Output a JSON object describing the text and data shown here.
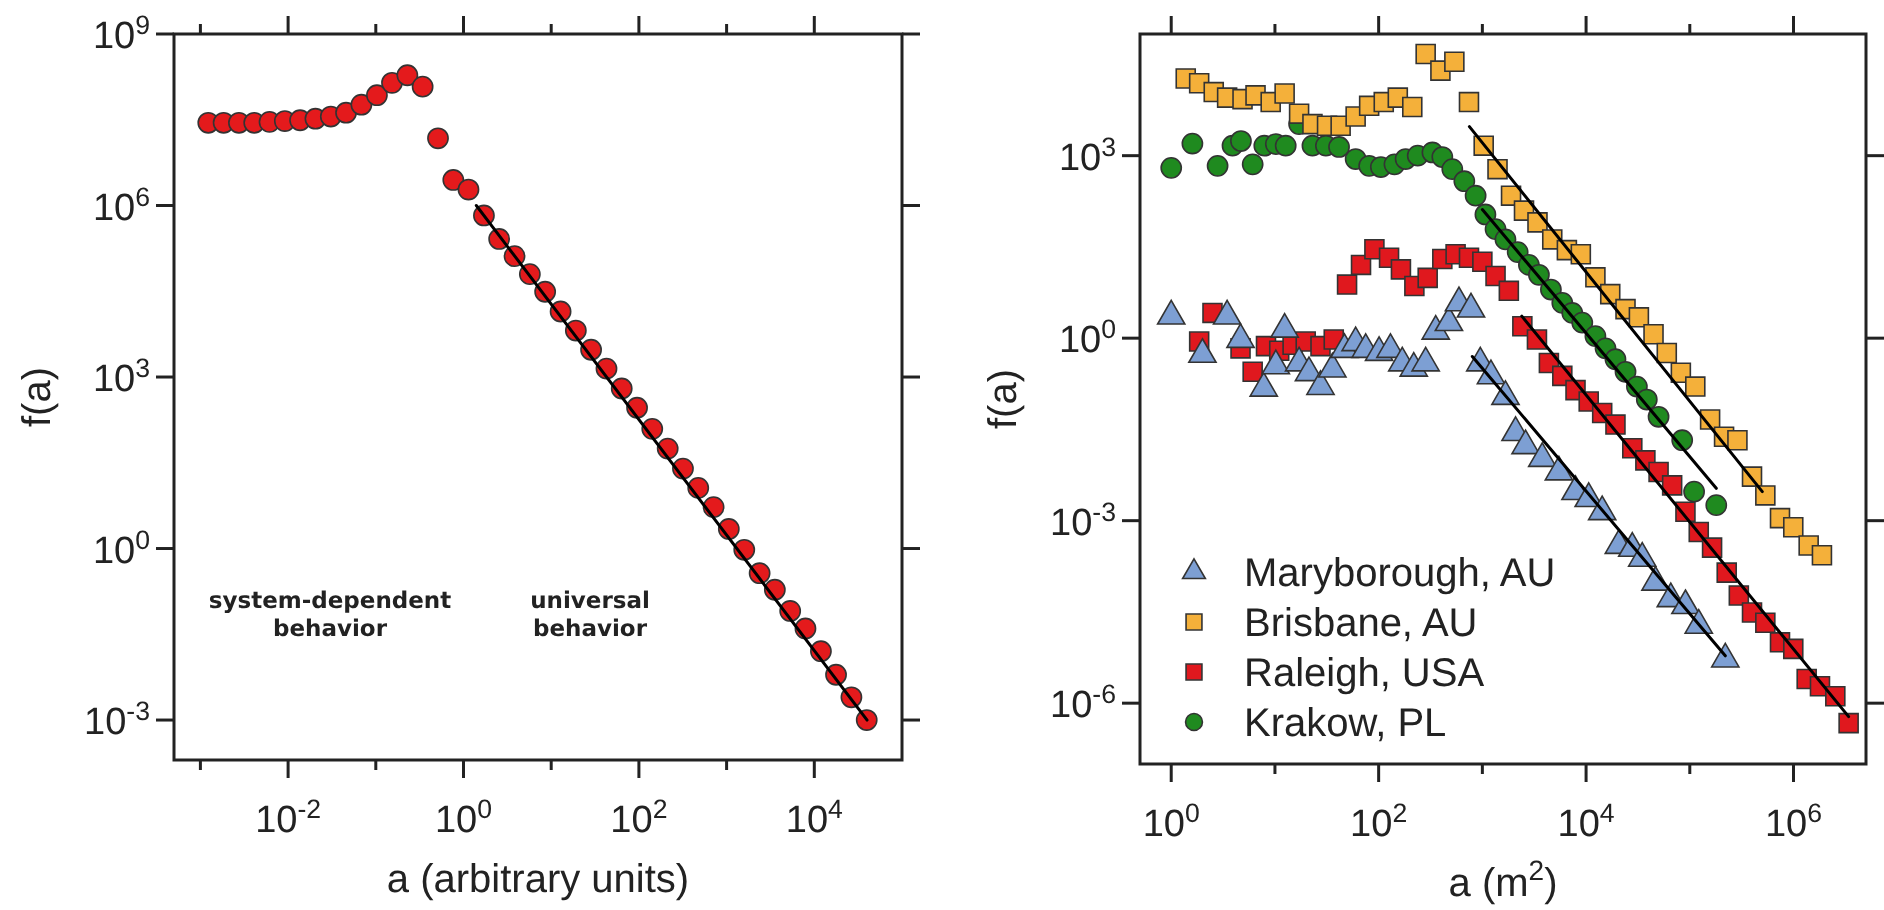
{
  "chart_data": [
    {
      "type": "scatter",
      "xlabel": "a (arbitrary units)",
      "ylabel": "f(a)",
      "log": "xy",
      "xlim": [
        0.0005,
        100000
      ],
      "ylim": [
        0.0002,
        1000000000
      ],
      "xticks": [
        {
          "value": 0.001,
          "label": null
        },
        {
          "value": 0.01,
          "label": "10$^{-2}$"
        },
        {
          "value": 0.1,
          "label": null
        },
        {
          "value": 1,
          "label": "10$^{0}$"
        },
        {
          "value": 10,
          "label": null
        },
        {
          "value": 100,
          "label": "10$^{2}$"
        },
        {
          "value": 1000,
          "label": null
        },
        {
          "value": 10000,
          "label": "10$^{4}$"
        }
      ],
      "yticks": [
        {
          "value": 0.001,
          "label": "10$^{-3}$"
        },
        {
          "value": 1,
          "label": "10$^{0}$"
        },
        {
          "value": 1000,
          "label": "10$^{3}$"
        },
        {
          "value": 1000000,
          "label": "10$^{6}$"
        },
        {
          "value": 1000000000,
          "label": "10$^{9}$"
        }
      ],
      "annotations": [
        "system-dependent behavior",
        "universal behavior"
      ],
      "series": [
        {
          "color": "#e41a1c",
          "marker": "circle",
          "x": [
            0.00123,
            0.00184,
            0.00275,
            0.00411,
            0.00614,
            0.00918,
            0.0137,
            0.0205,
            0.0307,
            0.0458,
            0.0685,
            0.103,
            0.153,
            0.229,
            0.342,
            0.512,
            0.765,
            1.14,
            1.71,
            2.55,
            3.82,
            5.71,
            8.53,
            12.8,
            19.1,
            28.5,
            42.7,
            63.7,
            95.3,
            142,
            213,
            318,
            475,
            711,
            1060,
            1590,
            2380,
            3550,
            5310,
            7930,
            11900,
            17700,
            26500,
            39600
          ],
          "values": [
            28000000,
            28000000,
            28000000,
            28000000,
            29000000,
            30000000,
            31000000,
            33000000,
            36000000,
            42000000,
            58000000,
            85000000,
            140000000,
            190000000,
            120000000,
            15000000,
            2800000,
            1900000,
            670000,
            260000,
            130000,
            63000,
            31000,
            14000,
            6500,
            3000,
            1400,
            630,
            290,
            124,
            56,
            25,
            11.5,
            5.3,
            2.2,
            0.95,
            0.37,
            0.19,
            0.081,
            0.04,
            0.016,
            0.0062,
            0.0025,
            0.001
          ]
        },
        {
          "type": "line",
          "color": "#000000",
          "x": [
            1.4,
            40000
          ],
          "values": [
            1000000,
            0.001
          ]
        }
      ]
    },
    {
      "type": "scatter",
      "xlabel": "a (m$^{2}$)",
      "ylabel": "f(a)",
      "log": "xy",
      "xlim": [
        0.5,
        5000000
      ],
      "ylim": [
        1e-07,
        100000
      ],
      "legend": "bottom left",
      "xticks": [
        {
          "value": 1,
          "label": "10$^{0}$"
        },
        {
          "value": 10,
          "label": null
        },
        {
          "value": 100,
          "label": "10$^{2}$"
        },
        {
          "value": 1000,
          "label": null
        },
        {
          "value": 10000,
          "label": "10$^{4}$"
        },
        {
          "value": 100000,
          "label": null
        },
        {
          "value": 1000000,
          "label": "10$^{6}$"
        }
      ],
      "yticks": [
        {
          "value": 1e-06,
          "label": "10$^{-6}$"
        },
        {
          "value": 0.001,
          "label": "10$^{-3}$"
        },
        {
          "value": 1,
          "label": "10$^{0}$"
        },
        {
          "value": 1000,
          "label": "10$^{3}$"
        }
      ],
      "series": [
        {
          "name": "Maryborough, AU",
          "color": "#7d9fd3",
          "marker": "triangle",
          "x": [
            1.0,
            2.0,
            3.46,
            4.66,
            7.8,
            10.2,
            12.4,
            17.1,
            21.3,
            27.5,
            35.8,
            46.8,
            60,
            75,
            101,
            130,
            169,
            218,
            284,
            355,
            476,
            595,
            777,
            955,
            1210,
            1670,
            2090,
            2610,
            3780,
            5470,
            7910,
            10600,
            14300,
            20700,
            27900,
            34800,
            46700,
            65600,
            90800,
            122000,
            220000
          ],
          "values": [
            2.3,
            0.54,
            2.3,
            0.95,
            0.15,
            0.35,
            1.4,
            0.39,
            0.27,
            0.16,
            0.31,
            0.65,
            0.84,
            0.65,
            0.58,
            0.65,
            0.39,
            0.32,
            0.39,
            1.3,
            1.8,
            3.8,
            3.0,
            0.39,
            0.24,
            0.11,
            0.028,
            0.017,
            0.0105,
            0.0063,
            0.003,
            0.0023,
            0.0014,
            0.00039,
            0.00035,
            0.00024,
            9.7e-05,
            5.2e-05,
            4e-05,
            1.9e-05,
            5.3e-06
          ]
        },
        {
          "name": "Brisbane, AU",
          "color": "#f4b03a",
          "marker": "square",
          "x": [
            1.38,
            1.86,
            2.57,
            3.46,
            4.87,
            6.5,
            9.1,
            12.4,
            17.1,
            23,
            31.8,
            43,
            60,
            81,
            112,
            153,
            211,
            284,
            394,
            537,
            743,
            1030,
            1400,
            1890,
            2520,
            3400,
            4720,
            6530,
            8900,
            12300,
            17100,
            24000,
            32300,
            44700,
            60000,
            82000,
            113000,
            157000,
            214000,
            288000,
            398000,
            535000,
            741000,
            995000,
            1400000,
            1880000
          ],
          "values": [
            18600,
            15500,
            11100,
            9000,
            8500,
            9800,
            7600,
            10500,
            4900,
            3300,
            3100,
            3100,
            4400,
            6600,
            7600,
            9000,
            6300,
            47000,
            25000,
            35000,
            7600,
            1460,
            600,
            220,
            125,
            80,
            42,
            28,
            24,
            10,
            5.3,
            3.0,
            2.2,
            1.16,
            0.57,
            0.27,
            0.16,
            0.046,
            0.024,
            0.021,
            0.0053,
            0.0026,
            0.0011,
            0.00078,
            0.00039,
            0.00027
          ]
        },
        {
          "name": "Raleigh, USA",
          "color": "#e0181e",
          "marker": "square",
          "x": [
            1.86,
            2.5,
            4.66,
            6.1,
            8.2,
            11,
            14.8,
            19.8,
            27.5,
            36.9,
            49.6,
            67.6,
            91,
            126,
            164,
            221,
            297,
            411,
            552,
            743,
            1000,
            1340,
            1800,
            2430,
            3360,
            4380,
            5900,
            7910,
            10600,
            14300,
            19200,
            27900,
            37300,
            50000,
            67600,
            90800,
            122000,
            164000,
            227000,
            297000,
            398000,
            535000,
            741000,
            995000,
            1340000,
            1800000,
            2530000,
            3400000
          ],
          "values": [
            0.88,
            2.6,
            0.68,
            0.28,
            0.74,
            0.62,
            0.78,
            0.88,
            0.74,
            0.95,
            7.6,
            16,
            29,
            21,
            13.5,
            7.2,
            9.8,
            20,
            24,
            21,
            18,
            10.5,
            6.0,
            1.57,
            0.95,
            0.39,
            0.24,
            0.14,
            0.091,
            0.059,
            0.038,
            0.0155,
            0.0098,
            0.0063,
            0.0038,
            0.0014,
            0.00065,
            0.00036,
            0.00014,
            5.9e-05,
            3.1e-05,
            2.1e-05,
            1e-05,
            7.8e-06,
            2.5e-06,
            1.9e-06,
            1.3e-06,
            4.7e-07
          ]
        },
        {
          "name": "Krakow, PL",
          "color": "#1f8a1f",
          "marker": "circle",
          "x": [
            1.0,
            1.6,
            2.8,
            3.9,
            4.7,
            6.1,
            7.9,
            10.2,
            12.7,
            17.1,
            23,
            31,
            41.5,
            60,
            81,
            105,
            142,
            182,
            238,
            330,
            411,
            513,
            670,
            861,
            1070,
            1340,
            1670,
            2190,
            2810,
            3510,
            4580,
            5900,
            7360,
            9190,
            12300,
            15400,
            19200,
            24000,
            30900,
            38500,
            50000,
            84500,
            110000,
            180000
          ],
          "values": [
            630,
            1580,
            680,
            1460,
            1740,
            720,
            1460,
            1550,
            1460,
            3300,
            1460,
            1460,
            1390,
            880,
            680,
            650,
            720,
            880,
            1000,
            1130,
            950,
            600,
            380,
            220,
            108,
            62,
            42,
            26,
            16,
            11,
            6.3,
            3.8,
            2.6,
            1.8,
            1.08,
            0.68,
            0.45,
            0.28,
            0.16,
            0.098,
            0.051,
            0.021,
            0.003,
            0.0018
          ]
        },
        {
          "type": "line",
          "color": "#000000",
          "x": [
            800,
            220000
          ],
          "values": [
            0.5,
            6e-06
          ]
        },
        {
          "type": "line",
          "color": "#000000",
          "x": [
            750,
            500000
          ],
          "values": [
            3000,
            0.003
          ]
        },
        {
          "type": "line",
          "color": "#000000",
          "x": [
            2400,
            3400000
          ],
          "values": [
            2.3,
            6e-07
          ]
        },
        {
          "type": "line",
          "color": "#000000",
          "x": [
            1000,
            180000
          ],
          "values": [
            130,
            0.0034
          ]
        }
      ]
    }
  ]
}
